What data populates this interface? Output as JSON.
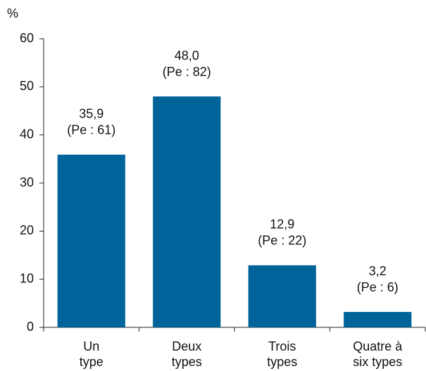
{
  "chart_data": {
    "type": "bar",
    "y_label": "%",
    "categories": [
      [
        "Un",
        "type"
      ],
      [
        "Deux",
        "types"
      ],
      [
        "Trois",
        "types"
      ],
      [
        "Quatre à",
        "six types"
      ]
    ],
    "values": [
      35.9,
      48.0,
      12.9,
      3.2
    ],
    "value_labels": [
      "35,9",
      "48,0",
      "12,9",
      "3,2"
    ],
    "annotations": [
      "(Pe : 61)",
      "(Pe : 82)",
      "(Pe : 22)",
      "(Pe : 6)"
    ],
    "color": "#00639a",
    "ylim": [
      0,
      60
    ],
    "yticks": [
      0,
      10,
      20,
      30,
      40,
      50,
      60
    ],
    "grid": false
  }
}
